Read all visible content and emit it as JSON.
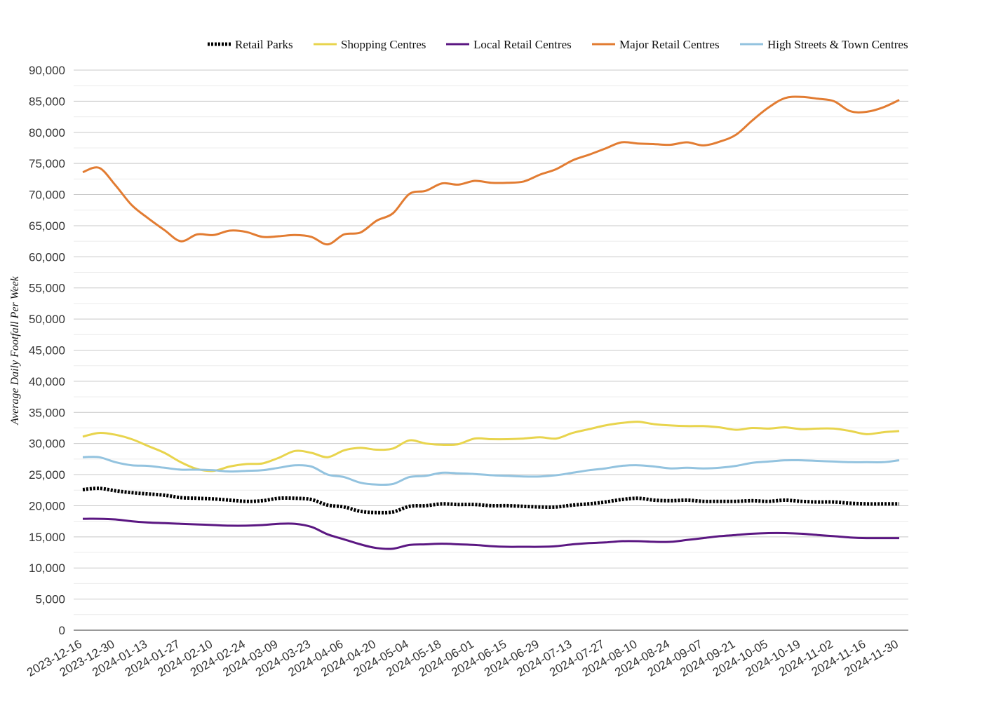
{
  "chart_data": {
    "type": "line",
    "ylabel": "Average Daily Footfall Per Week",
    "xlabel": "",
    "title": "",
    "ylim": [
      0,
      90000
    ],
    "yticks": [
      0,
      5000,
      10000,
      15000,
      20000,
      25000,
      30000,
      35000,
      40000,
      45000,
      50000,
      55000,
      60000,
      65000,
      70000,
      75000,
      80000,
      85000,
      90000
    ],
    "ytick_labels": [
      "0",
      "5,000",
      "10,000",
      "15,000",
      "20,000",
      "25,000",
      "30,000",
      "35,000",
      "40,000",
      "45,000",
      "50,000",
      "55,000",
      "60,000",
      "65,000",
      "70,000",
      "75,000",
      "80,000",
      "85,000",
      "90,000"
    ],
    "xtick_labels": [
      "2023-12-16",
      "2023-12-30",
      "2024-01-13",
      "2024-01-27",
      "2024-02-10",
      "2024-02-24",
      "2024-03-09",
      "2024-03-23",
      "2024-04-06",
      "2024-04-20",
      "2024-05-04",
      "2024-05-18",
      "2024-06-01",
      "2024-06-15",
      "2024-06-29",
      "2024-07-13",
      "2024-07-27",
      "2024-08-10",
      "2024-08-24",
      "2024-09-07",
      "2024-09-21",
      "2024-10-05",
      "2024-10-19",
      "2024-11-02",
      "2024-11-16",
      "2024-11-30"
    ],
    "legend_position": "top-right",
    "grid": true,
    "x": [
      "2023-12-16",
      "2023-12-23",
      "2023-12-30",
      "2024-01-06",
      "2024-01-13",
      "2024-01-20",
      "2024-01-27",
      "2024-02-03",
      "2024-02-10",
      "2024-02-17",
      "2024-02-24",
      "2024-03-02",
      "2024-03-09",
      "2024-03-16",
      "2024-03-23",
      "2024-03-30",
      "2024-04-06",
      "2024-04-13",
      "2024-04-20",
      "2024-04-27",
      "2024-05-04",
      "2024-05-11",
      "2024-05-18",
      "2024-05-25",
      "2024-06-01",
      "2024-06-08",
      "2024-06-15",
      "2024-06-22",
      "2024-06-29",
      "2024-07-06",
      "2024-07-13",
      "2024-07-20",
      "2024-07-27",
      "2024-08-03",
      "2024-08-10",
      "2024-08-17",
      "2024-08-24",
      "2024-08-31",
      "2024-09-07",
      "2024-09-14",
      "2024-09-21",
      "2024-09-28",
      "2024-10-05",
      "2024-10-12",
      "2024-10-19",
      "2024-10-26",
      "2024-11-02",
      "2024-11-09",
      "2024-11-16",
      "2024-11-23",
      "2024-11-30"
    ],
    "series": [
      {
        "name": "Retail Parks",
        "color": "#000000",
        "dash": true,
        "values": [
          22600,
          22800,
          22400,
          22100,
          21900,
          21700,
          21300,
          21200,
          21100,
          20900,
          20700,
          20800,
          21200,
          21200,
          21000,
          20100,
          19800,
          19100,
          18900,
          19000,
          19900,
          20000,
          20300,
          20200,
          20200,
          20000,
          20000,
          19900,
          19800,
          19800,
          20100,
          20300,
          20600,
          21000,
          21200,
          20900,
          20800,
          20900,
          20700,
          20700,
          20700,
          20800,
          20700,
          20900,
          20700,
          20600,
          20600,
          20400,
          20300,
          20300,
          20300
        ]
      },
      {
        "name": "Shopping Centres",
        "color": "#e8d44d",
        "dash": false,
        "values": [
          31100,
          31700,
          31400,
          30700,
          29600,
          28500,
          27000,
          25900,
          25600,
          26300,
          26700,
          26800,
          27700,
          28800,
          28500,
          27800,
          28900,
          29300,
          29000,
          29200,
          30500,
          30000,
          29800,
          29900,
          30800,
          30700,
          30700,
          30800,
          31000,
          30800,
          31700,
          32300,
          32900,
          33300,
          33500,
          33100,
          32900,
          32800,
          32800,
          32600,
          32200,
          32500,
          32400,
          32600,
          32300,
          32400,
          32400,
          32000,
          31500,
          31800,
          32000
        ]
      },
      {
        "name": "Local Retail Centres",
        "color": "#5b1782",
        "dash": false,
        "values": [
          17900,
          17900,
          17800,
          17500,
          17300,
          17200,
          17100,
          17000,
          16900,
          16800,
          16800,
          16900,
          17100,
          17100,
          16600,
          15400,
          14600,
          13800,
          13200,
          13100,
          13700,
          13800,
          13900,
          13800,
          13700,
          13500,
          13400,
          13400,
          13400,
          13500,
          13800,
          14000,
          14100,
          14300,
          14300,
          14200,
          14200,
          14500,
          14800,
          15100,
          15300,
          15500,
          15600,
          15600,
          15500,
          15300,
          15100,
          14900,
          14800,
          14800,
          14800
        ]
      },
      {
        "name": "Major Retail Centres",
        "color": "#e27c32",
        "dash": false,
        "values": [
          73600,
          74300,
          71500,
          68300,
          66200,
          64300,
          62500,
          63600,
          63500,
          64200,
          64000,
          63200,
          63300,
          63500,
          63200,
          62000,
          63600,
          63900,
          65800,
          67000,
          70100,
          70600,
          71800,
          71600,
          72200,
          71900,
          71900,
          72100,
          73200,
          74100,
          75500,
          76400,
          77400,
          78400,
          78200,
          78100,
          78000,
          78400,
          77900,
          78500,
          79600,
          81900,
          84000,
          85500,
          85700,
          85400,
          85000,
          83400,
          83300,
          84000,
          85200
        ]
      },
      {
        "name": "High Streets & Town Centres",
        "color": "#93c3df",
        "dash": false,
        "values": [
          27800,
          27800,
          27000,
          26500,
          26400,
          26100,
          25800,
          25800,
          25700,
          25500,
          25600,
          25700,
          26100,
          26500,
          26300,
          25000,
          24600,
          23700,
          23400,
          23500,
          24600,
          24800,
          25300,
          25200,
          25100,
          24900,
          24800,
          24700,
          24700,
          24900,
          25300,
          25700,
          26000,
          26400,
          26500,
          26300,
          26000,
          26100,
          26000,
          26100,
          26400,
          26900,
          27100,
          27300,
          27300,
          27200,
          27100,
          27000,
          27000,
          27000,
          27300
        ]
      }
    ]
  }
}
